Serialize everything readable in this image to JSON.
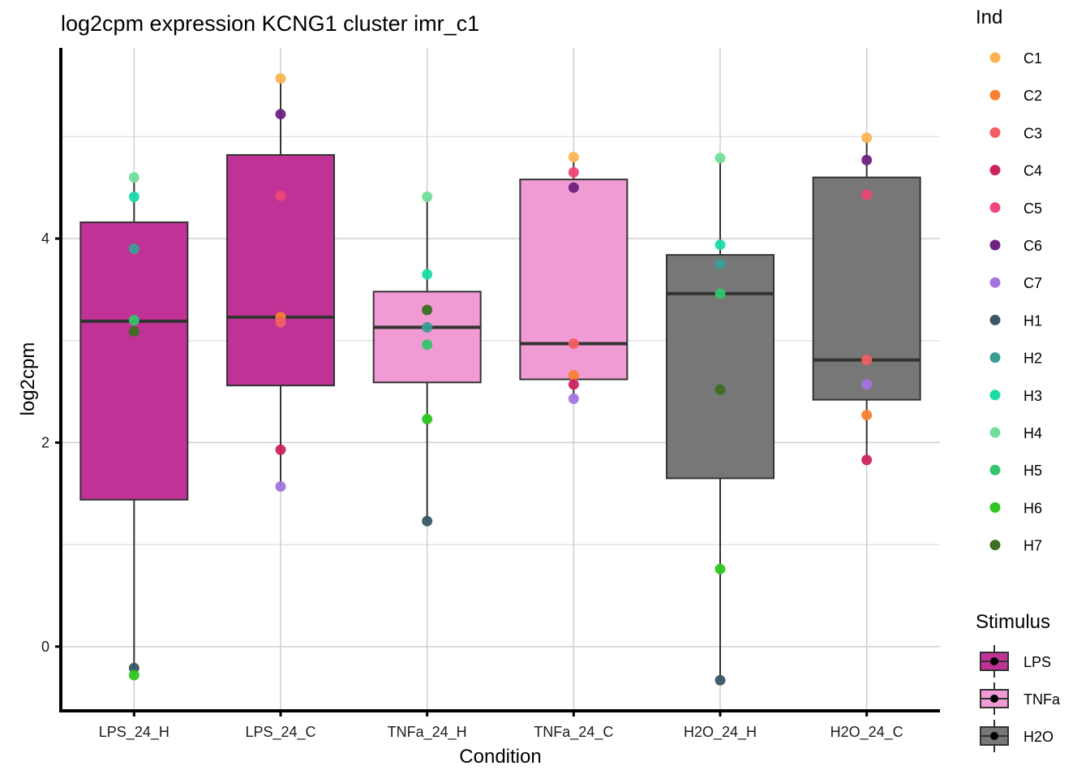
{
  "chart_data": {
    "type": "boxplot",
    "title": "log2cpm expression KCNG1 cluster imr_c1",
    "xlabel": "Condition",
    "ylabel": "log2cpm",
    "ylim": [
      -0.63,
      5.87
    ],
    "yticks": [
      0,
      2,
      4
    ],
    "ytick_labels": [
      "0",
      "2",
      "4"
    ],
    "minor_gridlines": [
      1,
      3,
      5
    ],
    "grid": true,
    "categories": [
      "LPS_24_H",
      "LPS_24_C",
      "TNFa_24_H",
      "TNFa_24_C",
      "H2O_24_H",
      "H2O_24_C"
    ],
    "boxes": [
      {
        "category": "LPS_24_H",
        "stimulus": "LPS",
        "q1": 1.44,
        "median": 3.19,
        "q3": 4.16,
        "whisker_low": -0.28,
        "whisker_high": 4.6
      },
      {
        "category": "LPS_24_C",
        "stimulus": "LPS",
        "q1": 2.56,
        "median": 3.23,
        "q3": 4.82,
        "whisker_low": 1.57,
        "whisker_high": 5.57
      },
      {
        "category": "TNFa_24_H",
        "stimulus": "TNFa",
        "q1": 2.59,
        "median": 3.13,
        "q3": 3.48,
        "whisker_low": 1.23,
        "whisker_high": 4.41
      },
      {
        "category": "TNFa_24_C",
        "stimulus": "TNFa",
        "q1": 2.62,
        "median": 2.97,
        "q3": 4.58,
        "whisker_low": 2.43,
        "whisker_high": 4.8
      },
      {
        "category": "H2O_24_H",
        "stimulus": "H2O",
        "q1": 1.65,
        "median": 3.46,
        "q3": 3.84,
        "whisker_low": -0.33,
        "whisker_high": 4.79
      },
      {
        "category": "H2O_24_C",
        "stimulus": "H2O",
        "q1": 2.42,
        "median": 2.81,
        "q3": 4.6,
        "whisker_low": 1.83,
        "whisker_high": 4.99
      }
    ],
    "points": [
      {
        "category": "LPS_24_H",
        "ind": "H4",
        "value": 4.6
      },
      {
        "category": "LPS_24_H",
        "ind": "H3",
        "value": 4.41
      },
      {
        "category": "LPS_24_H",
        "ind": "H2",
        "value": 3.9
      },
      {
        "category": "LPS_24_H",
        "ind": "H5",
        "value": 3.2
      },
      {
        "category": "LPS_24_H",
        "ind": "H7",
        "value": 3.09
      },
      {
        "category": "LPS_24_H",
        "ind": "H1",
        "value": -0.21
      },
      {
        "category": "LPS_24_H",
        "ind": "H6",
        "value": -0.28
      },
      {
        "category": "LPS_24_C",
        "ind": "C1",
        "value": 5.57
      },
      {
        "category": "LPS_24_C",
        "ind": "C6",
        "value": 5.22
      },
      {
        "category": "LPS_24_C",
        "ind": "C5",
        "value": 4.42
      },
      {
        "category": "LPS_24_C",
        "ind": "C2",
        "value": 3.23
      },
      {
        "category": "LPS_24_C",
        "ind": "C3",
        "value": 3.18
      },
      {
        "category": "LPS_24_C",
        "ind": "C4",
        "value": 1.93
      },
      {
        "category": "LPS_24_C",
        "ind": "C7",
        "value": 1.57
      },
      {
        "category": "TNFa_24_H",
        "ind": "H4",
        "value": 4.41
      },
      {
        "category": "TNFa_24_H",
        "ind": "H3",
        "value": 3.65
      },
      {
        "category": "TNFa_24_H",
        "ind": "H7",
        "value": 3.3
      },
      {
        "category": "TNFa_24_H",
        "ind": "H2",
        "value": 3.13
      },
      {
        "category": "TNFa_24_H",
        "ind": "H5",
        "value": 2.96
      },
      {
        "category": "TNFa_24_H",
        "ind": "H6",
        "value": 2.23
      },
      {
        "category": "TNFa_24_H",
        "ind": "H1",
        "value": 1.23
      },
      {
        "category": "TNFa_24_C",
        "ind": "C1",
        "value": 4.8
      },
      {
        "category": "TNFa_24_C",
        "ind": "C5",
        "value": 4.65
      },
      {
        "category": "TNFa_24_C",
        "ind": "C6",
        "value": 4.5
      },
      {
        "category": "TNFa_24_C",
        "ind": "C3",
        "value": 2.97
      },
      {
        "category": "TNFa_24_C",
        "ind": "C2",
        "value": 2.66
      },
      {
        "category": "TNFa_24_C",
        "ind": "C4",
        "value": 2.57
      },
      {
        "category": "TNFa_24_C",
        "ind": "C7",
        "value": 2.43
      },
      {
        "category": "H2O_24_H",
        "ind": "H4",
        "value": 4.79
      },
      {
        "category": "H2O_24_H",
        "ind": "H3",
        "value": 3.94
      },
      {
        "category": "H2O_24_H",
        "ind": "H2",
        "value": 3.75
      },
      {
        "category": "H2O_24_H",
        "ind": "H5",
        "value": 3.46
      },
      {
        "category": "H2O_24_H",
        "ind": "H7",
        "value": 2.52
      },
      {
        "category": "H2O_24_H",
        "ind": "H6",
        "value": 0.76
      },
      {
        "category": "H2O_24_H",
        "ind": "H1",
        "value": -0.33
      },
      {
        "category": "H2O_24_C",
        "ind": "C1",
        "value": 4.99
      },
      {
        "category": "H2O_24_C",
        "ind": "C6",
        "value": 4.77
      },
      {
        "category": "H2O_24_C",
        "ind": "C5",
        "value": 4.43
      },
      {
        "category": "H2O_24_C",
        "ind": "C3",
        "value": 2.81
      },
      {
        "category": "H2O_24_C",
        "ind": "C7",
        "value": 2.57
      },
      {
        "category": "H2O_24_C",
        "ind": "C2",
        "value": 2.27
      },
      {
        "category": "H2O_24_C",
        "ind": "C4",
        "value": 1.83
      }
    ],
    "legend_ind": {
      "title": "Ind",
      "placement": "right",
      "items": [
        {
          "label": "C1",
          "color": "#FBB454"
        },
        {
          "label": "C2",
          "color": "#F98130"
        },
        {
          "label": "C3",
          "color": "#F15F63"
        },
        {
          "label": "C4",
          "color": "#CC2360"
        },
        {
          "label": "C5",
          "color": "#EE4677"
        },
        {
          "label": "C6",
          "color": "#6E2180"
        },
        {
          "label": "C7",
          "color": "#A474E0"
        },
        {
          "label": "H1",
          "color": "#3A5766"
        },
        {
          "label": "H2",
          "color": "#3A9E95"
        },
        {
          "label": "H3",
          "color": "#1BDBA8"
        },
        {
          "label": "H4",
          "color": "#72DE9C"
        },
        {
          "label": "H5",
          "color": "#31C56B"
        },
        {
          "label": "H6",
          "color": "#2FC622"
        },
        {
          "label": "H7",
          "color": "#3C6E24"
        }
      ]
    },
    "legend_stimulus": {
      "title": "Stimulus",
      "placement": "right-bottom",
      "items": [
        {
          "label": "LPS",
          "color": "#C03296"
        },
        {
          "label": "TNFa",
          "color": "#F09BD3"
        },
        {
          "label": "H2O",
          "color": "#777777"
        }
      ]
    }
  }
}
